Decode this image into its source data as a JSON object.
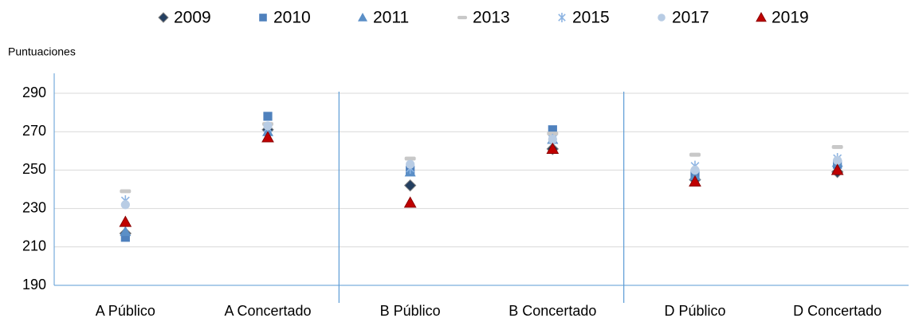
{
  "chart_data": {
    "type": "scatter",
    "y_label": "Puntuaciones",
    "categories": [
      "A Público",
      "A Concertado",
      "B Público",
      "B Concertado",
      "D Público",
      "D Concertado"
    ],
    "ylim": [
      190,
      290
    ],
    "yticks": [
      190,
      210,
      230,
      250,
      270,
      290
    ],
    "grid": true,
    "legend": "top",
    "series": [
      {
        "name": "2009",
        "color": "#243f60",
        "marker": "diamond",
        "values": [
          217,
          271,
          242,
          261,
          245,
          249
        ]
      },
      {
        "name": "2010",
        "color": "#4f81bd",
        "marker": "square",
        "values": [
          215,
          278,
          250,
          271,
          248,
          253
        ]
      },
      {
        "name": "2011",
        "color": "#5b8fc7",
        "marker": "triangle",
        "values": [
          218,
          270,
          249,
          266,
          247,
          254
        ]
      },
      {
        "name": "2013",
        "color": "#c8c8c8",
        "marker": "dash",
        "values": [
          239,
          274,
          256,
          269,
          258,
          262
        ]
      },
      {
        "name": "2015",
        "color": "#8db4e2",
        "marker": "star",
        "values": [
          234,
          272,
          251,
          266,
          252,
          256
        ]
      },
      {
        "name": "2017",
        "color": "#b8cce4",
        "marker": "circle",
        "values": [
          232,
          273,
          253,
          266,
          250,
          255
        ]
      },
      {
        "name": "2019",
        "color": "#c00000",
        "marker": "triangle",
        "values": [
          223,
          267,
          233,
          261,
          244,
          250
        ]
      }
    ]
  }
}
